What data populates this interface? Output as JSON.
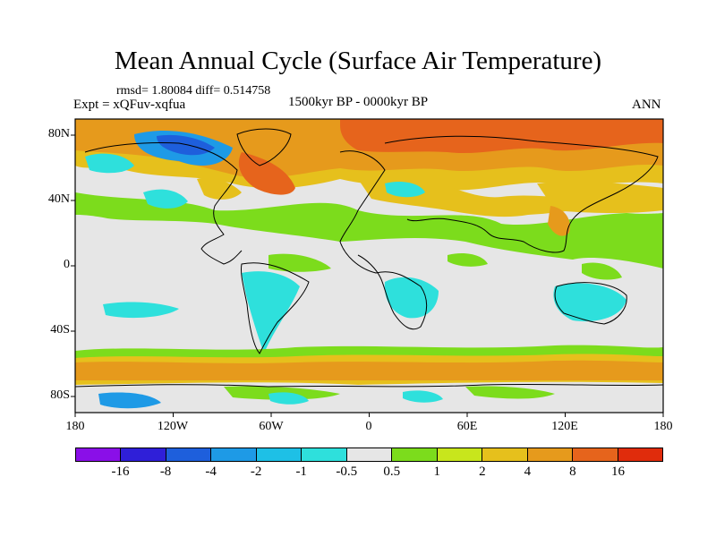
{
  "title": "Mean Annual Cycle (Surface Air Temperature)",
  "stats": "rmsd= 1.80084 diff= 0.514758",
  "expt": "Expt = xQFuv-xqfua",
  "period": "1500kyr BP - 0000kyr BP",
  "season": "ANN",
  "map": {
    "lat_labels": [
      "80N",
      "40N",
      "0",
      "40S",
      "80S"
    ],
    "lon_labels": [
      "180",
      "120W",
      "60W",
      "0",
      "60E",
      "120E",
      "180"
    ]
  },
  "legend": {
    "labels": [
      "-16",
      "-8",
      "-4",
      "-2",
      "-1",
      "-0.5",
      "0.5",
      "1",
      "2",
      "4",
      "8",
      "16"
    ],
    "colors": [
      "#8a0fe8",
      "#2f1fd8",
      "#1e5fdc",
      "#1e9ae6",
      "#1ec0e6",
      "#2ee0dc",
      "#e6e6e6",
      "#7cdc1c",
      "#c8e61c",
      "#e6c01c",
      "#e69a1c",
      "#e6641c",
      "#e02c0c"
    ]
  }
}
